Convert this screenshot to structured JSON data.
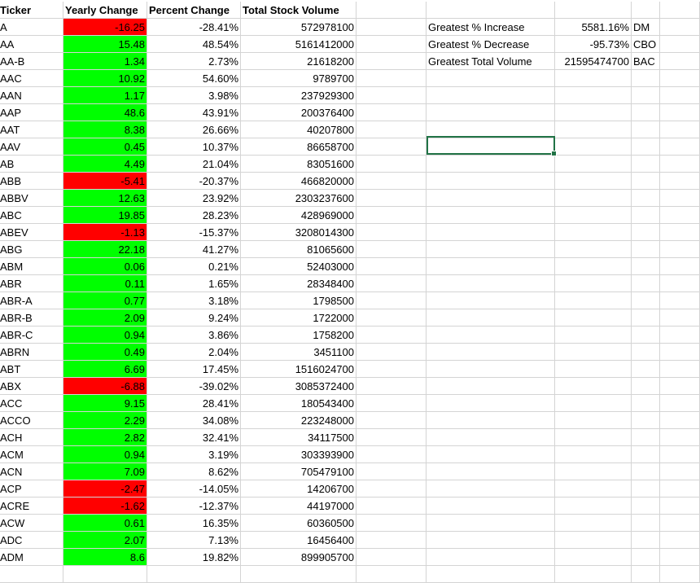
{
  "headers": {
    "ticker": "Ticker",
    "yearly": "Yearly Change",
    "percent": "Percent Change",
    "volume": "Total Stock Volume"
  },
  "rows": [
    {
      "t": "A",
      "y": "-16.25",
      "p": "-28.41%",
      "v": "572978100",
      "s": "neg"
    },
    {
      "t": "AA",
      "y": "15.48",
      "p": "48.54%",
      "v": "5161412000",
      "s": "pos"
    },
    {
      "t": "AA-B",
      "y": "1.34",
      "p": "2.73%",
      "v": "21618200",
      "s": "pos"
    },
    {
      "t": "AAC",
      "y": "10.92",
      "p": "54.60%",
      "v": "9789700",
      "s": "pos"
    },
    {
      "t": "AAN",
      "y": "1.17",
      "p": "3.98%",
      "v": "237929300",
      "s": "pos"
    },
    {
      "t": "AAP",
      "y": "48.6",
      "p": "43.91%",
      "v": "200376400",
      "s": "pos"
    },
    {
      "t": "AAT",
      "y": "8.38",
      "p": "26.66%",
      "v": "40207800",
      "s": "pos"
    },
    {
      "t": "AAV",
      "y": "0.45",
      "p": "10.37%",
      "v": "86658700",
      "s": "pos"
    },
    {
      "t": "AB",
      "y": "4.49",
      "p": "21.04%",
      "v": "83051600",
      "s": "pos"
    },
    {
      "t": "ABB",
      "y": "-5.41",
      "p": "-20.37%",
      "v": "466820000",
      "s": "neg"
    },
    {
      "t": "ABBV",
      "y": "12.63",
      "p": "23.92%",
      "v": "2303237600",
      "s": "pos"
    },
    {
      "t": "ABC",
      "y": "19.85",
      "p": "28.23%",
      "v": "428969000",
      "s": "pos"
    },
    {
      "t": "ABEV",
      "y": "-1.13",
      "p": "-15.37%",
      "v": "3208014300",
      "s": "neg"
    },
    {
      "t": "ABG",
      "y": "22.18",
      "p": "41.27%",
      "v": "81065600",
      "s": "pos"
    },
    {
      "t": "ABM",
      "y": "0.06",
      "p": "0.21%",
      "v": "52403000",
      "s": "pos"
    },
    {
      "t": "ABR",
      "y": "0.11",
      "p": "1.65%",
      "v": "28348400",
      "s": "pos"
    },
    {
      "t": "ABR-A",
      "y": "0.77",
      "p": "3.18%",
      "v": "1798500",
      "s": "pos"
    },
    {
      "t": "ABR-B",
      "y": "2.09",
      "p": "9.24%",
      "v": "1722000",
      "s": "pos"
    },
    {
      "t": "ABR-C",
      "y": "0.94",
      "p": "3.86%",
      "v": "1758200",
      "s": "pos"
    },
    {
      "t": "ABRN",
      "y": "0.49",
      "p": "2.04%",
      "v": "3451100",
      "s": "pos"
    },
    {
      "t": "ABT",
      "y": "6.69",
      "p": "17.45%",
      "v": "1516024700",
      "s": "pos"
    },
    {
      "t": "ABX",
      "y": "-6.88",
      "p": "-39.02%",
      "v": "3085372400",
      "s": "neg"
    },
    {
      "t": "ACC",
      "y": "9.15",
      "p": "28.41%",
      "v": "180543400",
      "s": "pos"
    },
    {
      "t": "ACCO",
      "y": "2.29",
      "p": "34.08%",
      "v": "223248000",
      "s": "pos"
    },
    {
      "t": "ACH",
      "y": "2.82",
      "p": "32.41%",
      "v": "34117500",
      "s": "pos"
    },
    {
      "t": "ACM",
      "y": "0.94",
      "p": "3.19%",
      "v": "303393900",
      "s": "pos"
    },
    {
      "t": "ACN",
      "y": "7.09",
      "p": "8.62%",
      "v": "705479100",
      "s": "pos"
    },
    {
      "t": "ACP",
      "y": "-2.47",
      "p": "-14.05%",
      "v": "14206700",
      "s": "neg"
    },
    {
      "t": "ACRE",
      "y": "-1.62",
      "p": "-12.37%",
      "v": "44197000",
      "s": "neg"
    },
    {
      "t": "ACW",
      "y": "0.61",
      "p": "16.35%",
      "v": "60360500",
      "s": "pos"
    },
    {
      "t": "ADC",
      "y": "2.07",
      "p": "7.13%",
      "v": "16456400",
      "s": "pos"
    },
    {
      "t": "ADM",
      "y": "8.6",
      "p": "19.82%",
      "v": "899905700",
      "s": "pos"
    }
  ],
  "summary": [
    {
      "label": "Greatest % Increase",
      "value": "5581.16%",
      "ticker": "DM"
    },
    {
      "label": "Greatest % Decrease",
      "value": "-95.73%",
      "ticker": "CBO"
    },
    {
      "label": "Greatest Total Volume",
      "value": "21595474700",
      "ticker": "BAC"
    }
  ],
  "colors": {
    "positive": "#00ff00",
    "negative": "#ff0000",
    "selection": "#217346",
    "grid": "#d4d4d4"
  }
}
